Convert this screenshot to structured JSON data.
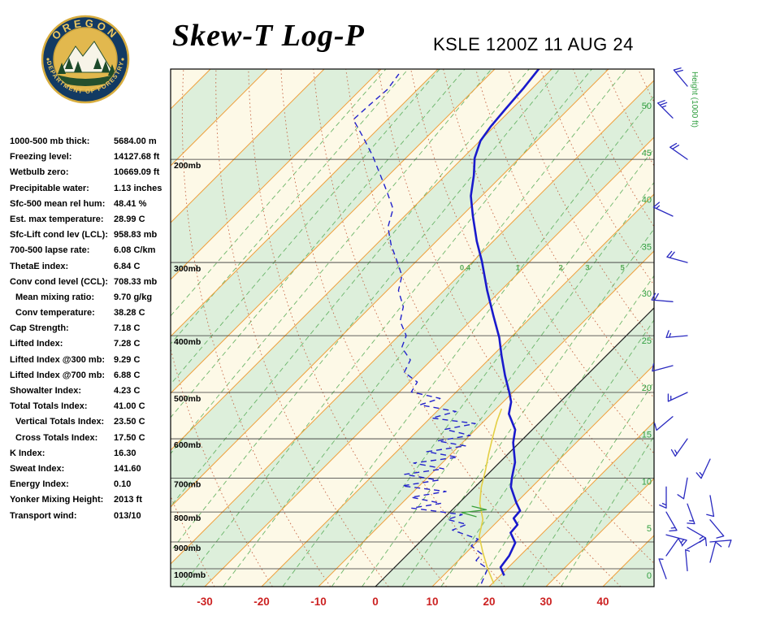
{
  "header": {
    "title": "Skew-T Log-P",
    "station_line": "KSLE 1200Z 11 AUG 24",
    "logo": {
      "org_top": "OREGON",
      "org_bottom": "DEPARTMENT OF FORESTRY"
    }
  },
  "stats": [
    {
      "label": "1000-500 mb thick:",
      "value": "5684.00 m",
      "indent": false
    },
    {
      "label": "Freezing level:",
      "value": "14127.68 ft",
      "indent": false
    },
    {
      "label": "Wetbulb zero:",
      "value": "10669.09 ft",
      "indent": false
    },
    {
      "label": "Precipitable water:",
      "value": "1.13 inches",
      "indent": false
    },
    {
      "label": "Sfc-500 mean rel hum:",
      "value": "48.41 %",
      "indent": false
    },
    {
      "label": "Est. max temperature:",
      "value": "28.99 C",
      "indent": false
    },
    {
      "label": "Sfc-Lift cond lev (LCL):",
      "value": "958.83 mb",
      "indent": false
    },
    {
      "label": "700-500 lapse rate:",
      "value": "6.08 C/km",
      "indent": false
    },
    {
      "label": "ThetaE index:",
      "value": "6.84 C",
      "indent": false
    },
    {
      "label": "Conv cond level (CCL):",
      "value": "708.33 mb",
      "indent": false
    },
    {
      "label": "Mean mixing ratio:",
      "value": "9.70 g/kg",
      "indent": true
    },
    {
      "label": "Conv temperature:",
      "value": "38.28 C",
      "indent": true
    },
    {
      "label": "Cap Strength:",
      "value": "7.18 C",
      "indent": false
    },
    {
      "label": "Lifted Index:",
      "value": "7.28 C",
      "indent": false
    },
    {
      "label": "Lifted Index @300 mb:",
      "value": "9.29 C",
      "indent": false
    },
    {
      "label": "Lifted Index @700 mb:",
      "value": "6.88 C",
      "indent": false
    },
    {
      "label": "Showalter Index:",
      "value": "4.23 C",
      "indent": false
    },
    {
      "label": "Total Totals Index:",
      "value": "41.00 C",
      "indent": false
    },
    {
      "label": "Vertical Totals Index:",
      "value": "23.50 C",
      "indent": true
    },
    {
      "label": "Cross Totals Index:",
      "value": "17.50 C",
      "indent": true
    },
    {
      "label": "K Index:",
      "value": "16.30",
      "indent": false
    },
    {
      "label": "Sweat Index:",
      "value": "141.60",
      "indent": false
    },
    {
      "label": "Energy Index:",
      "value": "0.10",
      "indent": false
    },
    {
      "label": "Yonker Mixing Height:",
      "value": "2013 ft",
      "indent": false
    },
    {
      "label": "Transport wind:",
      "value": "013/10",
      "indent": false
    }
  ],
  "chart_data": {
    "type": "skewt-log-p",
    "pressure_axis": {
      "lines": [
        200,
        300,
        400,
        500,
        600,
        700,
        800,
        900,
        1000
      ],
      "labels": [
        "200mb",
        "300mb",
        "400mb",
        "500mb",
        "600mb",
        "700mb",
        "800mb",
        "900mb",
        "1000mb"
      ],
      "top_p": 140,
      "bottom_p": 1073
    },
    "temp_axis": {
      "ticks": [
        -30,
        -20,
        -10,
        0,
        10,
        20,
        30,
        40
      ],
      "unit": "C"
    },
    "height_axis": {
      "ticks": [
        50,
        45,
        40,
        35,
        30,
        25,
        20,
        15,
        10,
        5,
        0
      ],
      "label": "Height (1000 ft)"
    },
    "isotherms": {
      "start": -130,
      "end": 40,
      "step": 10
    },
    "mixing_ratio_lines": [
      0.001,
      0.002,
      0.005,
      0.01,
      0.02,
      0.05,
      0.1,
      0.2,
      0.4,
      1,
      2,
      3,
      5,
      8,
      12,
      20,
      30
    ],
    "mixing_ratio_labels": [
      0.4,
      1,
      2,
      3,
      5
    ],
    "mixing_label_p": 312,
    "dry_adiabats_K": [
      240,
      250,
      260,
      270,
      280,
      290,
      300,
      310,
      320,
      330,
      340,
      350,
      360,
      370,
      380,
      390,
      400,
      410
    ],
    "temperature_profile": [
      [
        1027,
        20.7
      ],
      [
        994,
        18.6
      ],
      [
        950,
        18.1
      ],
      [
        903,
        16.9
      ],
      [
        868,
        14.3
      ],
      [
        841,
        14.1
      ],
      [
        820,
        12.3
      ],
      [
        796,
        12.1
      ],
      [
        771,
        10.0
      ],
      [
        725,
        6.3
      ],
      [
        700,
        4.9
      ],
      [
        658,
        2.7
      ],
      [
        609,
        -1.1
      ],
      [
        579,
        -3.0
      ],
      [
        544,
        -6.9
      ],
      [
        519,
        -8.6
      ],
      [
        499,
        -10.7
      ],
      [
        468,
        -14.3
      ],
      [
        433,
        -18.4
      ],
      [
        403,
        -22.0
      ],
      [
        369,
        -27.0
      ],
      [
        335,
        -32.4
      ],
      [
        299,
        -38.4
      ],
      [
        276,
        -42.9
      ],
      [
        250,
        -48.0
      ],
      [
        231,
        -51.9
      ],
      [
        213,
        -55.0
      ],
      [
        199,
        -57.9
      ],
      [
        186,
        -59.9
      ],
      [
        176,
        -60.6
      ],
      [
        164,
        -61.1
      ],
      [
        151,
        -61.6
      ],
      [
        140,
        -62.3
      ]
    ],
    "dewpoint_profile": [
      [
        1060,
        18.1
      ],
      [
        1000,
        16.6
      ],
      [
        968,
        13.1
      ],
      [
        944,
        13.0
      ],
      [
        914,
        9.7
      ],
      [
        890,
        9.7
      ],
      [
        859,
        3.6
      ],
      [
        840,
        5.1
      ],
      [
        824,
        0.9
      ],
      [
        808,
        2.6
      ],
      [
        788,
        -7.4
      ],
      [
        773,
        -3.1
      ],
      [
        755,
        -9.4
      ],
      [
        738,
        -4.3
      ],
      [
        722,
        -13.0
      ],
      [
        706,
        -7.7
      ],
      [
        690,
        -14.6
      ],
      [
        675,
        -8.7
      ],
      [
        660,
        -15.0
      ],
      [
        645,
        -8.3
      ],
      [
        631,
        -14.7
      ],
      [
        617,
        -8.9
      ],
      [
        605,
        -14.7
      ],
      [
        592,
        -9.9
      ],
      [
        578,
        -15.4
      ],
      [
        565,
        -11.1
      ],
      [
        553,
        -19.7
      ],
      [
        539,
        -16.6
      ],
      [
        525,
        -24.1
      ],
      [
        512,
        -21.7
      ],
      [
        499,
        -27.9
      ],
      [
        480,
        -28.6
      ],
      [
        462,
        -32.6
      ],
      [
        440,
        -33.7
      ],
      [
        419,
        -37.4
      ],
      [
        400,
        -38.7
      ],
      [
        378,
        -42.3
      ],
      [
        357,
        -44.3
      ],
      [
        335,
        -48.0
      ],
      [
        316,
        -50.0
      ],
      [
        299,
        -53.3
      ],
      [
        280,
        -57.3
      ],
      [
        261,
        -61.0
      ],
      [
        243,
        -63.3
      ],
      [
        226,
        -67.7
      ],
      [
        210,
        -72.3
      ],
      [
        197,
        -76.3
      ],
      [
        183,
        -81.3
      ],
      [
        171,
        -86.0
      ],
      [
        161,
        -85.7
      ],
      [
        152,
        -85.3
      ],
      [
        143,
        -86.0
      ]
    ],
    "parcel_profile": [
      [
        1060,
        20.3
      ],
      [
        1000,
        16.6
      ],
      [
        938,
        12.9
      ],
      [
        880,
        9.4
      ],
      [
        824,
        7.1
      ],
      [
        773,
        3.7
      ],
      [
        725,
        1.1
      ],
      [
        679,
        -1.1
      ],
      [
        637,
        -3.4
      ],
      [
        597,
        -5.6
      ],
      [
        560,
        -7.7
      ],
      [
        533,
        -9.1
      ]
    ],
    "wetbulb_segment": [
      [
        815,
        5.5
      ],
      [
        802,
        2.2
      ],
      [
        793,
        6.0
      ],
      [
        782,
        2.8
      ]
    ],
    "winds": [
      [
        1040,
        340,
        5
      ],
      [
        1008,
        355,
        5
      ],
      [
        975,
        15,
        10
      ],
      [
        950,
        35,
        10
      ],
      [
        925,
        60,
        10
      ],
      [
        900,
        85,
        10
      ],
      [
        875,
        105,
        15
      ],
      [
        850,
        120,
        15
      ],
      [
        825,
        140,
        10
      ],
      [
        800,
        150,
        15
      ],
      [
        775,
        160,
        15
      ],
      [
        750,
        170,
        10
      ],
      [
        725,
        180,
        15
      ],
      [
        700,
        190,
        10
      ],
      [
        650,
        205,
        15
      ],
      [
        600,
        215,
        15
      ],
      [
        550,
        230,
        10
      ],
      [
        500,
        245,
        15
      ],
      [
        450,
        255,
        10
      ],
      [
        400,
        265,
        15
      ],
      [
        350,
        275,
        20
      ],
      [
        300,
        285,
        20
      ],
      [
        250,
        295,
        15
      ],
      [
        200,
        305,
        20
      ],
      [
        170,
        315,
        25
      ],
      [
        150,
        320,
        20
      ]
    ],
    "colors": {
      "background": "#fdf9e7",
      "band": "#ddefdb",
      "isotherm": "#efa13f",
      "zero_isotherm": "#222222",
      "dry_adiabat": "#c25b3a",
      "mixing_ratio": "#55aa55",
      "pressure_line": "#333333",
      "temperature": "#1a1acc",
      "dewpoint": "#2222cc",
      "parcel": "#e3cf45",
      "wetbulb": "#3aa03a",
      "barb": "#2a2ac0",
      "temp_tick": "#cc2222",
      "height_tick": "#2f9e3f",
      "logo_navy": "#123a63",
      "logo_gold": "#e2b84e",
      "logo_gold_text": "#ecc75e",
      "logo_green": "#24502e"
    }
  }
}
